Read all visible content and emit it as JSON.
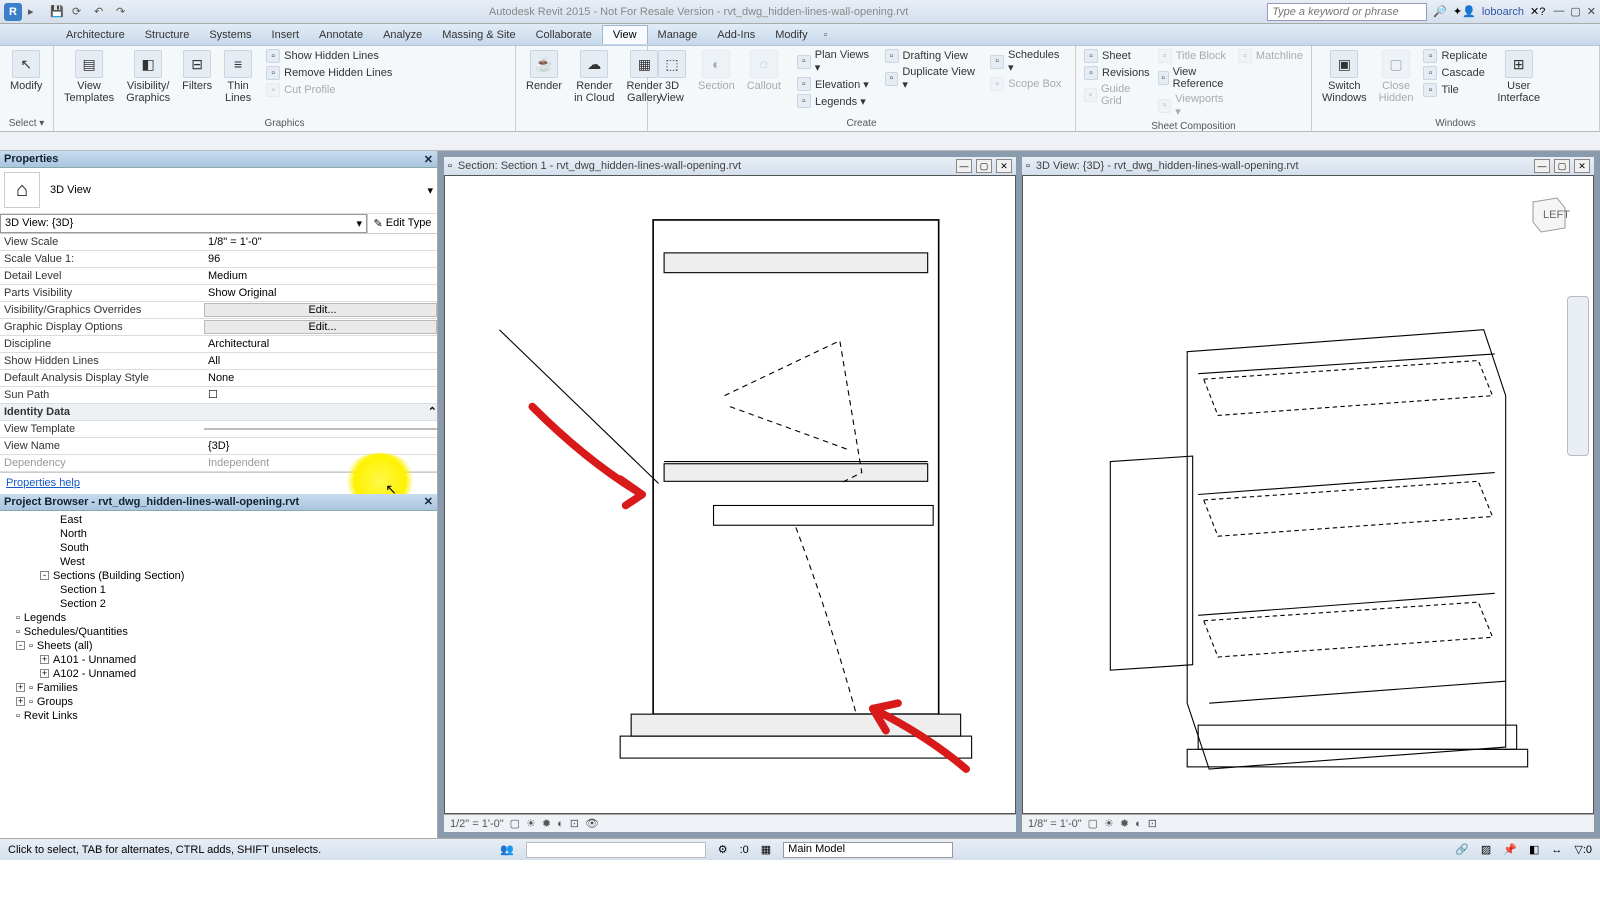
{
  "app": {
    "title": "Autodesk Revit 2015 - Not For Resale Version -   rvt_dwg_hidden-lines-wall-opening.rvt",
    "search_placeholder": "Type a keyword or phrase",
    "user": "loboarch"
  },
  "menutabs": [
    "Architecture",
    "Structure",
    "Systems",
    "Insert",
    "Annotate",
    "Analyze",
    "Massing & Site",
    "Collaborate",
    "View",
    "Manage",
    "Add-Ins",
    "Modify"
  ],
  "active_tab": "View",
  "ribbon": {
    "modify": "Modify",
    "select": "Select ▾",
    "graphics": {
      "label": "Graphics",
      "view_templates": "View\nTemplates",
      "visibility": "Visibility/\nGraphics",
      "filters": "Filters",
      "thin": "Thin\nLines",
      "show_hidden": "Show  Hidden Lines",
      "remove_hidden": "Remove  Hidden Lines",
      "cut_profile": "Cut  Profile"
    },
    "render": {
      "r1": "Render",
      "r2": "Render\nin Cloud",
      "r3": "Render\nGallery"
    },
    "create": {
      "label": "Create",
      "v3d": "3D\nView",
      "section": "Section",
      "callout": "Callout",
      "plan": "Plan  Views ▾",
      "drafting": "Drafting  View",
      "schedules": "Schedules ▾",
      "elevation": "Elevation ▾",
      "duplicate": "Duplicate  View ▾",
      "scope": "Scope  Box",
      "legends": "Legends ▾"
    },
    "sheet": {
      "label": "Sheet Composition",
      "sheet": "Sheet",
      "title": "Title  Block",
      "match": "Matchline",
      "revisions": "Revisions",
      "viewref": "View  Reference",
      "guide": "Guide  Grid",
      "viewports": "Viewports ▾"
    },
    "windows": {
      "label": "Windows",
      "switch": "Switch\nWindows",
      "close": "Close\nHidden",
      "replicate": "Replicate",
      "cascade": "Cascade",
      "tile": "Tile",
      "ui": "User\nInterface"
    }
  },
  "properties": {
    "title": "Properties",
    "type": "3D View",
    "instance": "3D View: {3D}",
    "edit_type": "Edit Type",
    "rows": [
      {
        "k": "View Scale",
        "v": "1/8\" = 1'-0\""
      },
      {
        "k": "Scale Value    1:",
        "v": "96"
      },
      {
        "k": "Detail Level",
        "v": "Medium"
      },
      {
        "k": "Parts Visibility",
        "v": "Show Original"
      },
      {
        "k": "Visibility/Graphics Overrides",
        "v": "Edit...",
        "btn": true
      },
      {
        "k": "Graphic Display Options",
        "v": "Edit...",
        "btn": true
      },
      {
        "k": "Discipline",
        "v": "Architectural"
      },
      {
        "k": "Show Hidden Lines",
        "v": "All"
      },
      {
        "k": "Default Analysis Display Style",
        "v": "None"
      },
      {
        "k": "Sun Path",
        "v": "☐"
      }
    ],
    "ident_header": "Identity Data",
    "ident": [
      {
        "k": "View Template",
        "v": "<None>",
        "btn": true
      },
      {
        "k": "View Name",
        "v": "{3D}"
      },
      {
        "k": "Dependency",
        "v": "Independent",
        "dis": true
      }
    ],
    "help": "Properties help",
    "apply": "Apply"
  },
  "browser": {
    "title": "Project Browser - rvt_dwg_hidden-lines-wall-opening.rvt",
    "items": [
      {
        "lvl": 3,
        "t": "East"
      },
      {
        "lvl": 3,
        "t": "North"
      },
      {
        "lvl": 3,
        "t": "South"
      },
      {
        "lvl": 3,
        "t": "West"
      },
      {
        "lvl": 2,
        "t": "Sections (Building Section)",
        "exp": "-"
      },
      {
        "lvl": 3,
        "t": "Section 1"
      },
      {
        "lvl": 3,
        "t": "Section 2"
      },
      {
        "lvl": 1,
        "t": "Legends",
        "ico": true
      },
      {
        "lvl": 1,
        "t": "Schedules/Quantities",
        "ico": true
      },
      {
        "lvl": 1,
        "t": "Sheets (all)",
        "exp": "-",
        "ico": true
      },
      {
        "lvl": 2,
        "t": "A101 - Unnamed",
        "exp": "+"
      },
      {
        "lvl": 2,
        "t": "A102 - Unnamed",
        "exp": "+"
      },
      {
        "lvl": 1,
        "t": "Families",
        "exp": "+",
        "ico": true
      },
      {
        "lvl": 1,
        "t": "Groups",
        "exp": "+",
        "ico": true
      },
      {
        "lvl": 1,
        "t": "Revit Links",
        "ico": true
      }
    ]
  },
  "views": {
    "left": {
      "title": "Section: Section 1 - rvt_dwg_hidden-lines-wall-opening.rvt",
      "scale": "1/2\" = 1'-0\""
    },
    "right": {
      "title": "3D View: {3D} - rvt_dwg_hidden-lines-wall-opening.rvt",
      "scale": "1/8\" = 1'-0\"",
      "cube": "LEFT"
    }
  },
  "status": {
    "msg": "Click to select, TAB for alternates, CTRL adds, SHIFT unselects.",
    "zero": ":0",
    "workset": "Main Model"
  }
}
